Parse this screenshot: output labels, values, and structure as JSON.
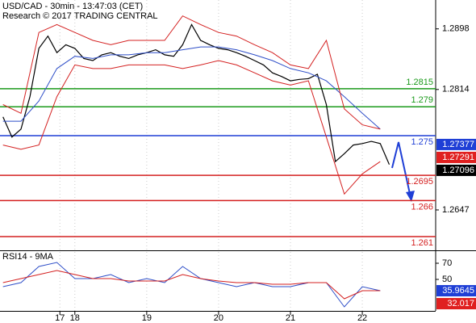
{
  "chart_data": [
    {
      "type": "line",
      "title": "USD/CAD - 30min - 13:47:03 (CET)",
      "subtitle": "Research © 2017 TRADING CENTRAL",
      "xlim": [
        -50,
        241
      ],
      "xticks": [
        {
          "value": -10,
          "label": "17"
        },
        {
          "value": 0,
          "label": "18"
        },
        {
          "value": 48,
          "label": "19"
        },
        {
          "value": 96,
          "label": "20"
        },
        {
          "value": 144,
          "label": "21"
        },
        {
          "value": 192,
          "label": "22"
        }
      ],
      "ylim": [
        1.2591,
        1.2938
      ],
      "yticks": [
        1.2898,
        1.2814,
        1.2647
      ],
      "series": [
        {
          "color": "#000000",
          "x": [
            -48,
            -42,
            -36,
            -30,
            -24,
            -18,
            -12,
            -6,
            0,
            6,
            12,
            18,
            24,
            30,
            36,
            42,
            48,
            54,
            60,
            66,
            72,
            78,
            84,
            90,
            96,
            102,
            108,
            114,
            120,
            126,
            132,
            138,
            144,
            150,
            156,
            162,
            168,
            174,
            180,
            186,
            192,
            198,
            204,
            210
          ],
          "values": [
            1.2776,
            1.2748,
            1.2759,
            1.2804,
            1.2871,
            1.2888,
            1.2865,
            1.2876,
            1.2871,
            1.2857,
            1.2854,
            1.2862,
            1.2865,
            1.286,
            1.2857,
            1.2862,
            1.2865,
            1.2869,
            1.2862,
            1.286,
            1.2876,
            1.2904,
            1.2882,
            1.2876,
            1.2871,
            1.2869,
            1.2865,
            1.286,
            1.2854,
            1.2848,
            1.2837,
            1.2832,
            1.2826,
            1.2828,
            1.2829,
            1.2835,
            1.2793,
            1.2714,
            1.2725,
            1.2737,
            1.2739,
            1.2742,
            1.2739,
            1.271
          ]
        },
        {
          "color": "#2f4fc8",
          "x": [
            -48,
            -36,
            -24,
            -12,
            0,
            12,
            24,
            36,
            48,
            60,
            72,
            84,
            96,
            108,
            120,
            132,
            144,
            156,
            168,
            180,
            192,
            204
          ],
          "values": [
            1.277,
            1.277,
            1.2798,
            1.2843,
            1.286,
            1.2857,
            1.2862,
            1.2862,
            1.2865,
            1.2865,
            1.2869,
            1.2873,
            1.2873,
            1.2869,
            1.2862,
            1.2854,
            1.2843,
            1.2837,
            1.2826,
            1.2804,
            1.2781,
            1.2759
          ]
        },
        {
          "color": "#d42020",
          "x": [
            -48,
            -36,
            -24,
            -12,
            0,
            12,
            24,
            36,
            48,
            60,
            72,
            84,
            96,
            108,
            120,
            132,
            144,
            156,
            168,
            180,
            192,
            204
          ],
          "values": [
            1.2793,
            1.2781,
            1.2893,
            1.2904,
            1.2893,
            1.2882,
            1.2876,
            1.2882,
            1.2882,
            1.2882,
            1.2916,
            1.2904,
            1.2893,
            1.2888,
            1.2876,
            1.2865,
            1.2848,
            1.2843,
            1.2882,
            1.2787,
            1.2765,
            1.2759
          ]
        },
        {
          "color": "#d42020",
          "x": [
            -48,
            -36,
            -24,
            -12,
            0,
            12,
            24,
            36,
            48,
            60,
            72,
            84,
            96,
            108,
            120,
            132,
            144,
            156,
            168,
            180,
            192,
            204
          ],
          "values": [
            1.2737,
            1.2731,
            1.2737,
            1.2804,
            1.2848,
            1.2843,
            1.2843,
            1.2848,
            1.2848,
            1.2848,
            1.2843,
            1.2848,
            1.2854,
            1.2848,
            1.2837,
            1.2826,
            1.282,
            1.2826,
            1.2748,
            1.2669,
            1.2697,
            1.2714
          ]
        }
      ],
      "levels": [
        {
          "value": 1.2815,
          "color": "#1a9a1a"
        },
        {
          "value": 1.279,
          "color": "#1a9a1a"
        },
        {
          "value": 1.275,
          "color": "#1f3fd6"
        },
        {
          "value": 1.2695,
          "color": "#d42020"
        },
        {
          "value": 1.266,
          "color": "#d42020"
        },
        {
          "value": 1.261,
          "color": "#d42020"
        }
      ],
      "markers": [
        {
          "value": 1.27377,
          "color": "#1f3fd6"
        },
        {
          "value": 1.27291,
          "color": "#e02020"
        },
        {
          "value": 1.27096,
          "color": "#000000"
        }
      ]
    },
    {
      "type": "line",
      "title": "RSI14 - 9MA",
      "xlim": [
        -50,
        241
      ],
      "ylim": [
        11,
        84
      ],
      "yticks": [
        70,
        50
      ],
      "series": [
        {
          "color": "#2f4fc8",
          "x": [
            -48,
            -36,
            -24,
            -12,
            0,
            12,
            24,
            36,
            48,
            60,
            72,
            84,
            96,
            108,
            120,
            132,
            144,
            156,
            168,
            180,
            192,
            204
          ],
          "values": [
            41,
            46,
            66,
            71,
            51,
            51,
            56,
            46,
            51,
            46,
            66,
            51,
            46,
            41,
            46,
            41,
            41,
            46,
            46,
            16,
            41,
            36
          ]
        },
        {
          "color": "#d42020",
          "x": [
            -48,
            -36,
            -24,
            -12,
            0,
            12,
            24,
            36,
            48,
            60,
            72,
            84,
            96,
            108,
            120,
            132,
            144,
            156,
            168,
            180,
            192,
            204
          ],
          "values": [
            46,
            51,
            56,
            61,
            56,
            51,
            51,
            48,
            48,
            48,
            56,
            51,
            48,
            46,
            46,
            44,
            44,
            46,
            46,
            26,
            36,
            36
          ]
        }
      ],
      "markers": [
        {
          "value": 35.9645,
          "color": "#1f3fd6"
        },
        {
          "value": 32.017,
          "color": "#e02020"
        }
      ]
    }
  ]
}
